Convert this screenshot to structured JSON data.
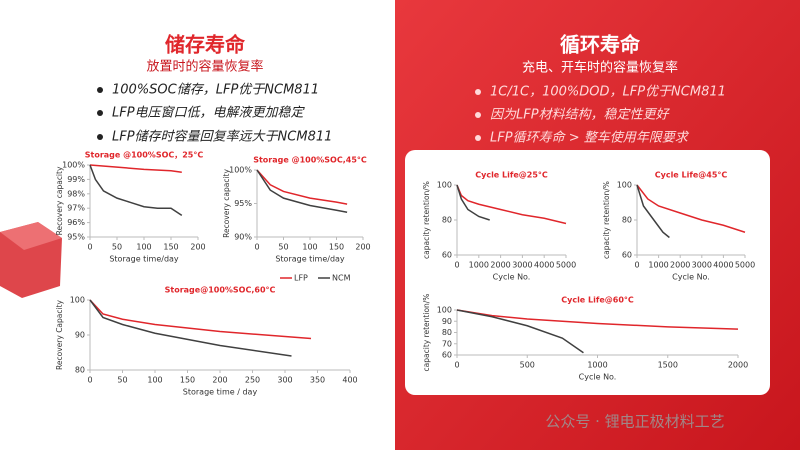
{
  "left_panel": {
    "title": "储存寿命",
    "subtitle": "放置时的容量恢复率",
    "bullets": [
      "100%SOC储存，LFP优于NCM811",
      "LFP电压窗口低，电解液更加稳定",
      "LFP储存时容量回复率远大于NCM811"
    ]
  },
  "right_panel": {
    "title": "循环寿命",
    "subtitle": "充电、开车时的容量恢复率",
    "bullets": [
      "1C/1C，100%DOD，LFP优于NCM811",
      "因为LFP材料结构，稳定性更好",
      "LFP循环寿命 > 整车使用年限要求"
    ]
  },
  "watermark": "公众号 · 锂电正极材料工艺",
  "chart_data": [
    {
      "type": "line",
      "title": "Storage @100%SOC，25°C",
      "x_label": "Storage time/day",
      "y_label": "Recovery capacity",
      "xlim": [
        0,
        200
      ],
      "xticks": [
        0,
        50,
        100,
        150,
        200
      ],
      "ylim": [
        95,
        100
      ],
      "yticks": [
        {
          "value": 95,
          "label": "95%"
        },
        {
          "value": 96,
          "label": "96%"
        },
        {
          "value": 97,
          "label": "97%"
        },
        {
          "value": 98,
          "label": "98%"
        },
        {
          "value": 99,
          "label": "99%"
        },
        {
          "value": 100,
          "label": "100%"
        }
      ],
      "series": [
        {
          "color": "#e0262b",
          "x": [
            0,
            50,
            100,
            150,
            170
          ],
          "values": [
            100,
            99.85,
            99.7,
            99.6,
            99.5
          ]
        },
        {
          "color": "#404040",
          "x": [
            0,
            10,
            25,
            50,
            75,
            100,
            125,
            150,
            170
          ],
          "values": [
            100,
            99,
            98.2,
            97.7,
            97.4,
            97.1,
            97.0,
            97.0,
            96.5
          ]
        }
      ]
    },
    {
      "type": "line",
      "title": "Storage @100%SOC,45°C",
      "x_label": "Storage time/day",
      "y_label": "Recovery capacity",
      "xlim": [
        0,
        200
      ],
      "xticks": [
        0,
        50,
        100,
        150,
        200
      ],
      "ylim": [
        90,
        100
      ],
      "yticks": [
        {
          "value": 90,
          "label": "90%"
        },
        {
          "value": 95,
          "label": "95%"
        },
        {
          "value": 100,
          "label": "100%"
        }
      ],
      "series": [
        {
          "color": "#e0262b",
          "x": [
            0,
            25,
            50,
            100,
            150,
            170
          ],
          "values": [
            100,
            97.8,
            96.8,
            95.8,
            95.2,
            94.9
          ]
        },
        {
          "color": "#404040",
          "x": [
            0,
            25,
            50,
            100,
            150,
            170
          ],
          "values": [
            100,
            97,
            95.8,
            94.7,
            94,
            93.7
          ]
        }
      ]
    },
    {
      "type": "line",
      "title": "Storage@100%SOC,60°C",
      "x_label": "Storage time / day",
      "y_label": "Recovery Capacity",
      "xlim": [
        0,
        400
      ],
      "xticks": [
        0,
        50,
        100,
        150,
        200,
        250,
        300,
        350,
        400
      ],
      "ylim": [
        80,
        100
      ],
      "yticks": [
        80,
        90,
        100
      ],
      "series": [
        {
          "name": "LFP",
          "color": "#e0262b",
          "x": [
            0,
            20,
            50,
            100,
            200,
            340
          ],
          "values": [
            100,
            96,
            94.5,
            93,
            91,
            89
          ]
        },
        {
          "name": "NCM",
          "color": "#404040",
          "x": [
            0,
            20,
            50,
            100,
            200,
            310
          ],
          "values": [
            100,
            95,
            93,
            90.5,
            87,
            84
          ]
        }
      ]
    },
    {
      "type": "line",
      "title": "Cycle Life@25°C",
      "x_label": "Cycle No.",
      "y_label": "capacity retention/%",
      "xlim": [
        0,
        5000
      ],
      "xticks": [
        0,
        1000,
        2000,
        3000,
        4000,
        5000
      ],
      "ylim": [
        60,
        100
      ],
      "yticks": [
        60,
        80,
        100
      ],
      "series": [
        {
          "color": "#e0262b",
          "x": [
            0,
            200,
            500,
            1000,
            2000,
            3000,
            4000,
            5000
          ],
          "values": [
            100,
            94,
            91,
            89,
            86,
            83,
            81,
            78
          ]
        },
        {
          "color": "#404040",
          "x": [
            0,
            200,
            500,
            1000,
            1500
          ],
          "values": [
            100,
            92,
            86,
            82,
            80
          ]
        }
      ]
    },
    {
      "type": "line",
      "title": "Cycle Life@45°C",
      "x_label": "Cycle No.",
      "y_label": "capacity retention/%",
      "xlim": [
        0,
        5000
      ],
      "xticks": [
        0,
        1000,
        2000,
        3000,
        4000,
        5000
      ],
      "ylim": [
        60,
        100
      ],
      "yticks": [
        60,
        80,
        100
      ],
      "series": [
        {
          "color": "#e0262b",
          "x": [
            0,
            500,
            1000,
            2000,
            3000,
            4000,
            5000
          ],
          "values": [
            100,
            92,
            88,
            84,
            80,
            77,
            73
          ]
        },
        {
          "color": "#404040",
          "x": [
            0,
            300,
            600,
            900,
            1200,
            1500
          ],
          "values": [
            100,
            88,
            83,
            78,
            73,
            70
          ]
        }
      ]
    },
    {
      "type": "line",
      "title": "Cycle Life@60°C",
      "x_label": "Cycle No.",
      "y_label": "capacity retention/%",
      "xlim": [
        0,
        2000
      ],
      "xticks": [
        0,
        500,
        1000,
        1500,
        2000
      ],
      "ylim": [
        60,
        100
      ],
      "yticks": [
        60,
        70,
        80,
        90,
        100
      ],
      "series": [
        {
          "color": "#e0262b",
          "x": [
            0,
            250,
            500,
            1000,
            1500,
            2000
          ],
          "values": [
            100,
            95,
            92,
            88,
            85,
            83
          ]
        },
        {
          "color": "#404040",
          "x": [
            0,
            250,
            500,
            750,
            900
          ],
          "values": [
            100,
            94,
            86,
            75,
            62
          ]
        }
      ]
    }
  ]
}
